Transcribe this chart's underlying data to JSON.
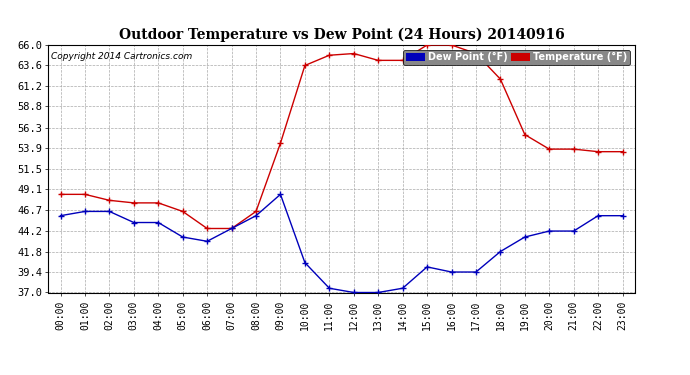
{
  "title": "Outdoor Temperature vs Dew Point (24 Hours) 20140916",
  "copyright": "Copyright 2014 Cartronics.com",
  "hours": [
    "00:00",
    "01:00",
    "02:00",
    "03:00",
    "04:00",
    "05:00",
    "06:00",
    "07:00",
    "08:00",
    "09:00",
    "10:00",
    "11:00",
    "12:00",
    "13:00",
    "14:00",
    "15:00",
    "16:00",
    "17:00",
    "18:00",
    "19:00",
    "20:00",
    "21:00",
    "22:00",
    "23:00"
  ],
  "temperature": [
    48.5,
    48.5,
    47.8,
    47.5,
    47.5,
    46.5,
    44.5,
    44.5,
    46.5,
    54.5,
    63.6,
    64.8,
    65.0,
    64.2,
    64.2,
    66.0,
    66.0,
    65.0,
    62.0,
    55.5,
    53.8,
    53.8,
    53.5,
    53.5
  ],
  "dew_point": [
    46.0,
    46.5,
    46.5,
    45.2,
    45.2,
    43.5,
    43.0,
    44.5,
    46.0,
    48.5,
    40.5,
    37.5,
    37.0,
    37.0,
    37.5,
    40.0,
    39.4,
    39.4,
    41.8,
    43.5,
    44.2,
    44.2,
    46.0,
    46.0
  ],
  "temp_color": "#cc0000",
  "dew_color": "#0000bb",
  "ylim": [
    37.0,
    66.0
  ],
  "yticks": [
    37.0,
    39.4,
    41.8,
    44.2,
    46.7,
    49.1,
    51.5,
    53.9,
    56.3,
    58.8,
    61.2,
    63.6,
    66.0
  ],
  "bg_color": "#ffffff",
  "plot_bg_color": "#ffffff",
  "grid_color": "#aaaaaa",
  "legend_dew_bg": "#0000bb",
  "legend_temp_bg": "#cc0000",
  "legend_text_color": "#ffffff"
}
